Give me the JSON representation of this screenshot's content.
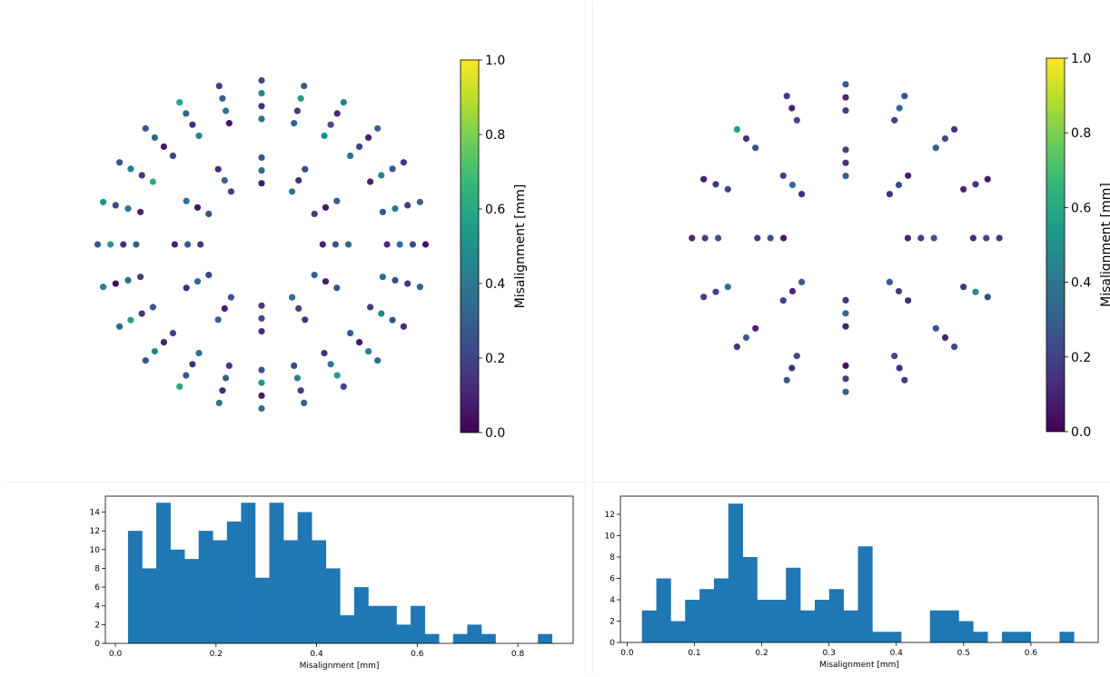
{
  "chart_data": [
    {
      "type": "scatter",
      "id": "scatter-left",
      "colorbar": {
        "label": "Misalignment [mm]",
        "clim": [
          0.0,
          1.0
        ],
        "ticks": [
          "0.0",
          "0.2",
          "0.4",
          "0.6",
          "0.8",
          "1.0"
        ],
        "colormap": "viridis"
      },
      "layout": "concentric rings of radial spokes",
      "rings": [
        {
          "spokes": 24,
          "radii": [
            0.78,
            0.86,
            0.94,
            1.02
          ],
          "values": [
            0.12,
            0.35,
            0.22,
            0.05,
            0.28,
            0.4,
            0.18,
            0.31,
            0.09,
            0.45,
            0.26,
            0.15,
            0.37,
            0.2,
            0.08,
            0.33,
            0.5,
            0.24,
            0.11,
            0.42,
            0.3,
            0.17,
            0.56,
            0.27,
            0.36,
            0.14,
            0.47,
            0.23,
            0.06,
            0.39,
            0.29,
            0.19,
            0.44,
            0.13,
            0.32,
            0.58,
            0.21,
            0.07,
            0.34,
            0.25,
            0.62,
            0.16,
            0.41,
            0.28,
            0.1,
            0.38,
            0.22,
            0.49,
            0.3,
            0.12,
            0.53,
            0.26,
            0.18,
            0.35,
            0.04,
            0.43,
            0.27,
            0.15,
            0.57,
            0.33,
            0.2,
            0.09,
            0.46,
            0.24,
            0.37,
            0.14,
            0.29,
            0.61,
            0.19,
            0.32,
            0.11,
            0.4,
            0.25,
            0.51,
            0.08,
            0.36,
            0.22,
            0.44,
            0.17,
            0.3,
            0.13,
            0.39,
            0.55,
            0.21,
            0.28,
            0.06,
            0.42,
            0.34,
            0.18,
            0.48,
            0.26,
            0.12,
            0.37,
            0.23,
            0.16,
            0.31
          ]
        },
        {
          "spokes": 12,
          "radii": [
            0.38,
            0.46,
            0.54
          ],
          "values": [
            0.1,
            0.25,
            0.33,
            0.18,
            0.06,
            0.29,
            0.4,
            0.14,
            0.22,
            0.08,
            0.35,
            0.27,
            0.19,
            0.31,
            0.12,
            0.24,
            0.05,
            0.37,
            0.16,
            0.28,
            0.09,
            0.21,
            0.34,
            0.13,
            0.26,
            0.07,
            0.3,
            0.17,
            0.23,
            0.11,
            0.36,
            0.2,
            0.15,
            0.32,
            0.08,
            0.27
          ]
        }
      ]
    },
    {
      "type": "scatter",
      "id": "scatter-right",
      "colorbar": {
        "label": "Misalignment [mm]",
        "clim": [
          0.0,
          1.0
        ],
        "ticks": [
          "0.0",
          "0.2",
          "0.4",
          "0.6",
          "0.8",
          "1.0"
        ],
        "colormap": "viridis"
      },
      "layout": "star of radial spokes",
      "rings": [
        {
          "spokes": 16,
          "radii": [
            0.78,
            0.86,
            0.94
          ],
          "values": [
            0.12,
            0.2,
            0.15,
            0.1,
            0.16,
            0.08,
            0.3,
            0.22,
            0.14,
            0.19,
            0.33,
            0.25,
            0.18,
            0.11,
            0.28,
            0.21,
            0.09,
            0.17,
            0.26,
            0.13,
            0.55,
            0.2,
            0.15,
            0.08,
            0.24,
            0.18,
            0.12,
            0.36,
            0.22,
            0.19,
            0.1,
            0.29,
            0.16,
            0.23,
            0.14,
            0.27,
            0.05,
            0.18,
            0.31,
            0.21,
            0.12,
            0.17,
            0.25,
            0.09,
            0.2,
            0.15,
            0.48,
            0.22
          ]
        },
        {
          "spokes": 8,
          "radii": [
            0.38,
            0.46,
            0.54
          ],
          "values": [
            0.1,
            0.18,
            0.25,
            0.14,
            0.22,
            0.08,
            0.3,
            0.16,
            0.2,
            0.12,
            0.35,
            0.19,
            0.06,
            0.24,
            0.17,
            0.28,
            0.11,
            0.21,
            0.15,
            0.33,
            0.09,
            0.26,
            0.18,
            0.13
          ]
        }
      ]
    },
    {
      "type": "bar",
      "id": "hist-left",
      "kind": "histogram",
      "xlabel": "Misalignment [mm]",
      "xlim": [
        -0.02,
        0.91
      ],
      "ylim": [
        0,
        15.7
      ],
      "xticks": [
        "0.0",
        "0.2",
        "0.4",
        "0.6",
        "0.8"
      ],
      "yticks": [
        "0",
        "2",
        "4",
        "6",
        "8",
        "10",
        "12",
        "14"
      ],
      "bin_start": 0.025,
      "bin_width": 0.0281,
      "counts": [
        12,
        8,
        15,
        10,
        9,
        12,
        11,
        13,
        15,
        7,
        15,
        11,
        14,
        11,
        8,
        3,
        6,
        4,
        4,
        2,
        4,
        1,
        0,
        1,
        2,
        1,
        0,
        0,
        0,
        1
      ],
      "color": "#1f77b4"
    },
    {
      "type": "bar",
      "id": "hist-right",
      "kind": "histogram",
      "xlabel": "Misalignment [mm]",
      "xlim": [
        -0.01,
        0.7
      ],
      "ylim": [
        0,
        13.7
      ],
      "xticks": [
        "0.0",
        "0.1",
        "0.2",
        "0.3",
        "0.4",
        "0.5",
        "0.6"
      ],
      "yticks": [
        "0",
        "2",
        "4",
        "6",
        "8",
        "10",
        "12"
      ],
      "bin_start": 0.022,
      "bin_width": 0.0214,
      "counts": [
        3,
        6,
        2,
        4,
        5,
        6,
        13,
        8,
        4,
        4,
        7,
        3,
        4,
        5,
        3,
        9,
        1,
        1,
        0,
        0,
        3,
        3,
        2,
        1,
        0,
        1,
        1,
        0,
        0,
        1
      ],
      "color": "#1f77b4"
    }
  ]
}
